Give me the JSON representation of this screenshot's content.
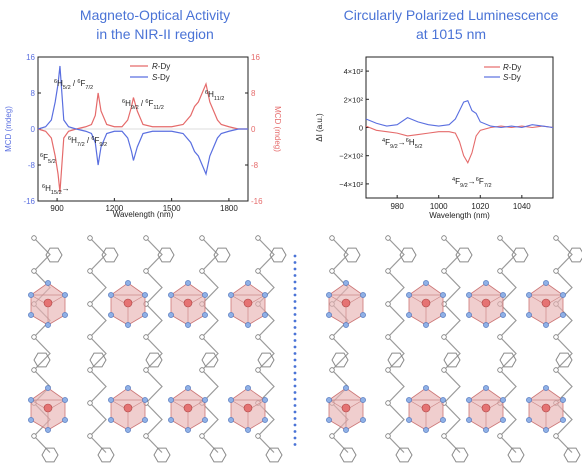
{
  "left_panel": {
    "title_line1": "Magneto-Optical Activity",
    "title_line2": "in the NIR-II region"
  },
  "right_panel": {
    "title_line1": "Circularly Polarized Luminescence",
    "title_line2": "at 1015 nm"
  },
  "colors": {
    "title": "#4a73d6",
    "r_dy": "#e56b6b",
    "s_dy": "#5a6fe0",
    "dots": "#4a73d6",
    "polyhedron": "#e8b4b4"
  },
  "chart_data": [
    {
      "type": "line",
      "xlabel": "Wavelength (nm)",
      "ylabel": "MCD (mdeg)",
      "ylabel_right": "MCD (mdeg)",
      "xlim": [
        800,
        1900
      ],
      "ylim": [
        -16,
        16
      ],
      "ylim_right": [
        16,
        -16
      ],
      "xticks": [
        900,
        1200,
        1500,
        1800
      ],
      "yticks": [
        16,
        8,
        0,
        -8,
        -16
      ],
      "yticks_right": [
        -16,
        -8,
        0,
        8,
        16
      ],
      "legend": "top-right",
      "series": [
        {
          "name": "R-Dy",
          "x": [
            800,
            840,
            870,
            890,
            905,
            915,
            925,
            935,
            960,
            1000,
            1050,
            1080,
            1100,
            1115,
            1130,
            1160,
            1200,
            1240,
            1270,
            1290,
            1300,
            1320,
            1350,
            1400,
            1450,
            1500,
            1560,
            1600,
            1620,
            1640,
            1660,
            1680,
            1700,
            1720,
            1740,
            1760,
            1800,
            1850,
            1900
          ],
          "y": [
            0,
            -0.5,
            -2,
            -6,
            -10,
            -14,
            -8,
            -2,
            -0.5,
            0,
            0.5,
            1,
            3,
            8,
            4,
            1,
            0.5,
            0.5,
            2,
            5,
            7,
            4,
            1,
            0.5,
            0.5,
            0.5,
            1,
            3,
            5,
            6,
            8,
            10,
            6,
            4,
            2,
            1,
            0.5,
            0,
            0
          ]
        },
        {
          "name": "S-Dy",
          "x": [
            800,
            840,
            870,
            890,
            905,
            915,
            925,
            935,
            960,
            1000,
            1050,
            1080,
            1100,
            1115,
            1130,
            1160,
            1200,
            1240,
            1270,
            1290,
            1300,
            1320,
            1350,
            1400,
            1450,
            1500,
            1560,
            1600,
            1620,
            1640,
            1660,
            1680,
            1700,
            1720,
            1740,
            1760,
            1800,
            1850,
            1900
          ],
          "y": [
            0,
            0.5,
            2,
            6,
            10,
            14,
            8,
            2,
            0.5,
            0,
            -0.5,
            -1,
            -3,
            -8,
            -4,
            -1,
            -0.5,
            -0.5,
            -2,
            -5,
            -7,
            -4,
            -1,
            -0.5,
            -0.5,
            -0.5,
            -1,
            -3,
            -5,
            -6,
            -8,
            -10,
            -6,
            -4,
            -2,
            -1,
            -0.5,
            0,
            0
          ]
        }
      ],
      "annotations": [
        {
          "text": "6H15/2→",
          "parts": [
            [
              "6",
              "sup"
            ],
            [
              "H",
              "n"
            ],
            [
              "15/2",
              "sub"
            ],
            [
              "→",
              "n"
            ]
          ]
        },
        {
          "text": "6F5/2",
          "parts": [
            [
              "6",
              "sup"
            ],
            [
              "F",
              "n"
            ],
            [
              "5/2",
              "sub"
            ]
          ]
        },
        {
          "text": "6H5/2 / 6F7/2",
          "parts": [
            [
              "6",
              "sup"
            ],
            [
              "H",
              "n"
            ],
            [
              "5/2",
              "sub"
            ],
            [
              " / ",
              "n"
            ],
            [
              "6",
              "sup"
            ],
            [
              "F",
              "n"
            ],
            [
              "7/2",
              "sub"
            ]
          ]
        },
        {
          "text": "6H7/2 / 6F9/2",
          "parts": [
            [
              "6",
              "sup"
            ],
            [
              "H",
              "n"
            ],
            [
              "7/2",
              "sub"
            ],
            [
              " / ",
              "n"
            ],
            [
              "6",
              "sup"
            ],
            [
              "F",
              "n"
            ],
            [
              "9/2",
              "sub"
            ]
          ]
        },
        {
          "text": "6H9/2 / 6F11/2",
          "parts": [
            [
              "6",
              "sup"
            ],
            [
              "H",
              "n"
            ],
            [
              "9/2",
              "sub"
            ],
            [
              " / ",
              "n"
            ],
            [
              "6",
              "sup"
            ],
            [
              "F",
              "n"
            ],
            [
              "11/2",
              "sub"
            ]
          ]
        },
        {
          "text": "6H11/2",
          "parts": [
            [
              "6",
              "sup"
            ],
            [
              "H",
              "n"
            ],
            [
              "11/2",
              "sub"
            ]
          ]
        }
      ]
    },
    {
      "type": "line",
      "xlabel": "Wavelength (nm)",
      "ylabel": "ΔI (a.u.)",
      "xlim": [
        965,
        1055
      ],
      "ylim": [
        -500,
        500
      ],
      "xticks": [
        980,
        1000,
        1020,
        1040
      ],
      "yticks": [
        400,
        200,
        0,
        -200,
        -400
      ],
      "ytick_labels": [
        "4×10²",
        "2×10²",
        "0",
        "−2×10²",
        "−4×10²"
      ],
      "legend": "top-right",
      "series": [
        {
          "name": "R-Dy",
          "x": [
            965,
            970,
            975,
            980,
            985,
            990,
            995,
            1000,
            1005,
            1008,
            1010,
            1012,
            1014,
            1016,
            1018,
            1020,
            1025,
            1030,
            1035,
            1040,
            1045,
            1050,
            1055
          ],
          "y": [
            10,
            -20,
            -30,
            -40,
            -60,
            -50,
            -40,
            -30,
            -30,
            -40,
            -100,
            -200,
            -250,
            -180,
            -60,
            -20,
            0,
            10,
            0,
            10,
            0,
            10,
            0
          ]
        },
        {
          "name": "S-Dy",
          "x": [
            965,
            970,
            975,
            980,
            985,
            990,
            995,
            1000,
            1005,
            1008,
            1010,
            1012,
            1014,
            1016,
            1018,
            1020,
            1025,
            1030,
            1035,
            1040,
            1045,
            1050,
            1055
          ],
          "y": [
            60,
            30,
            10,
            20,
            70,
            40,
            20,
            10,
            20,
            60,
            120,
            180,
            190,
            120,
            100,
            40,
            10,
            0,
            10,
            0,
            20,
            10,
            0
          ]
        }
      ],
      "annotations": [
        {
          "text": "4F9/2→6H5/2",
          "parts": [
            [
              "4",
              "sup"
            ],
            [
              "F",
              "n"
            ],
            [
              "9/2",
              "sub"
            ],
            [
              "→",
              "n"
            ],
            [
              "6",
              "sup"
            ],
            [
              "H",
              "n"
            ],
            [
              "5/2",
              "sub"
            ]
          ]
        },
        {
          "text": "4F9/2→6F7/2",
          "parts": [
            [
              "4",
              "sup"
            ],
            [
              "F",
              "n"
            ],
            [
              "9/2",
              "sub"
            ],
            [
              "→",
              "n"
            ],
            [
              "6",
              "sup"
            ],
            [
              "F",
              "n"
            ],
            [
              "7/2",
              "sub"
            ]
          ]
        }
      ]
    }
  ]
}
